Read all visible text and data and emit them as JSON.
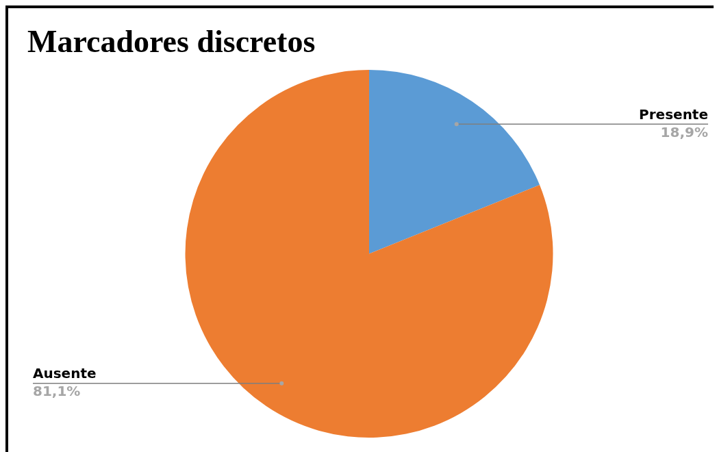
{
  "chart_data": {
    "type": "pie",
    "title": "Marcadores discretos",
    "categories": [
      "Presente",
      "Ausente"
    ],
    "values": [
      18.9,
      81.1
    ],
    "colors": [
      "#5b9bd5",
      "#ed7d31"
    ],
    "value_labels": [
      "18,9%",
      "81,1%"
    ],
    "legend": false
  }
}
